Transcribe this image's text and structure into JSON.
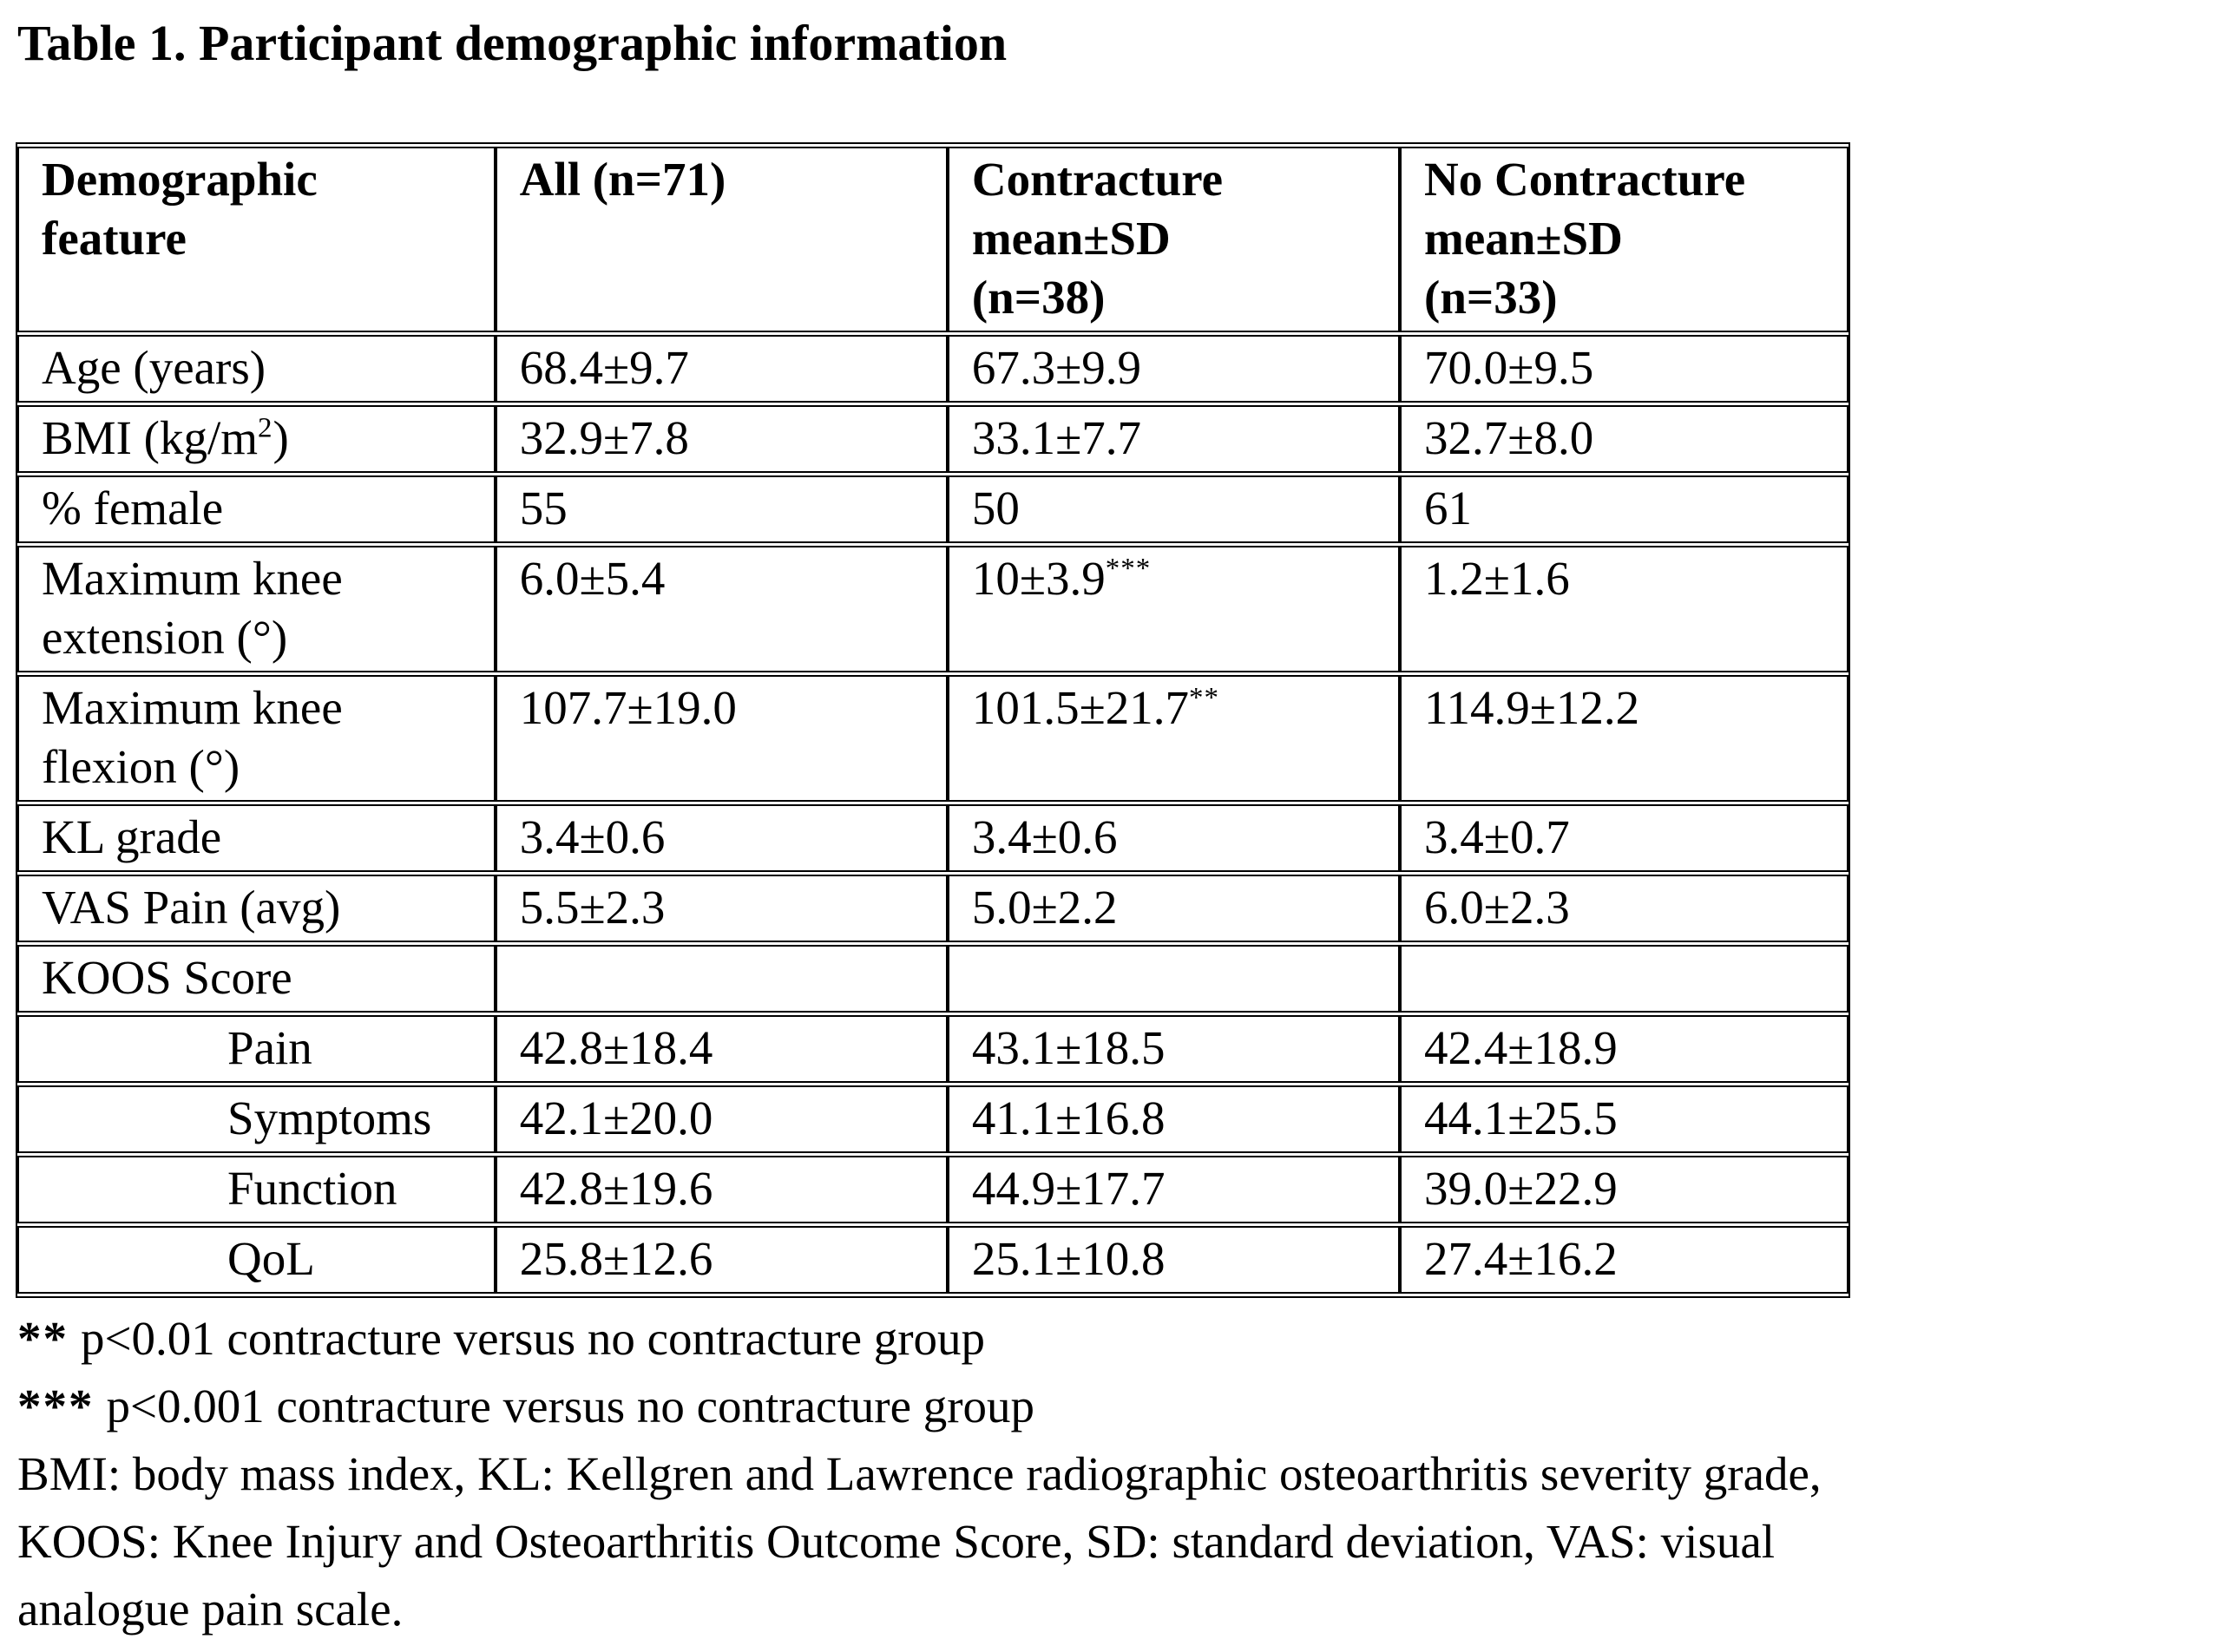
{
  "title": "Table 1. Participant demographic information",
  "table": {
    "header": {
      "feature": {
        "lines": [
          "Demographic",
          "feature"
        ]
      },
      "all": {
        "lines": [
          "All (n=71)"
        ]
      },
      "contracture": {
        "lines": [
          "Contracture",
          "mean±SD",
          "(n=38)"
        ]
      },
      "no_contracture": {
        "lines": [
          "No Contracture",
          "mean±SD",
          "(n=33)"
        ]
      }
    },
    "rows": [
      {
        "label": "Age (years)",
        "label_sup": "",
        "label_post": "",
        "all": "68.4±9.7",
        "contracture": "67.3±9.9",
        "contracture_sup": "",
        "no_contracture": "70.0±9.5"
      },
      {
        "label": "BMI (kg/m",
        "label_sup": "2",
        "label_post": ")",
        "all": "32.9±7.8",
        "contracture": "33.1±7.7",
        "contracture_sup": "",
        "no_contracture": "32.7±8.0"
      },
      {
        "label": "% female",
        "label_sup": "",
        "label_post": "",
        "all": "55",
        "contracture": "50",
        "contracture_sup": "",
        "no_contracture": "61"
      },
      {
        "label": "Maximum knee extension (°)",
        "label_sup": "",
        "label_post": "",
        "all": "6.0±5.4",
        "contracture": "10±3.9",
        "contracture_sup": "***",
        "no_contracture": "1.2±1.6"
      },
      {
        "label": "Maximum knee flexion (°)",
        "label_sup": "",
        "label_post": "",
        "all": "107.7±19.0",
        "contracture": "101.5±21.7",
        "contracture_sup": "**",
        "no_contracture": "114.9±12.2"
      },
      {
        "label": "KL grade",
        "label_sup": "",
        "label_post": "",
        "all": "3.4±0.6",
        "contracture": "3.4±0.6",
        "contracture_sup": "",
        "no_contracture": "3.4±0.7"
      },
      {
        "label": "VAS Pain (avg)",
        "label_sup": "",
        "label_post": "",
        "all": "5.5±2.3",
        "contracture": "5.0±2.2",
        "contracture_sup": "",
        "no_contracture": "6.0±2.3"
      },
      {
        "label": "KOOS Score",
        "label_sup": "",
        "label_post": "",
        "all": "",
        "contracture": "",
        "contracture_sup": "",
        "no_contracture": ""
      },
      {
        "label": "Pain",
        "label_sup": "",
        "label_post": "",
        "all": "42.8±18.4",
        "contracture": "43.1±18.5",
        "contracture_sup": "",
        "no_contracture": "42.4±18.9"
      },
      {
        "label": "Symptoms",
        "label_sup": "",
        "label_post": "",
        "all": "42.1±20.0",
        "contracture": "41.1±16.8",
        "contracture_sup": "",
        "no_contracture": "44.1±25.5"
      },
      {
        "label": "Function",
        "label_sup": "",
        "label_post": "",
        "all": "42.8±19.6",
        "contracture": "44.9±17.7",
        "contracture_sup": "",
        "no_contracture": "39.0±22.9"
      },
      {
        "label": "QoL",
        "label_sup": "",
        "label_post": "",
        "all": "25.8±12.6",
        "contracture": "25.1±10.8",
        "contracture_sup": "",
        "no_contracture": "27.4±16.2"
      }
    ]
  },
  "footnotes": {
    "significance": [
      {
        "marker": "**",
        "text": "p<0.01 contracture versus no contracture group"
      },
      {
        "marker": "***",
        "text": "p<0.001 contracture versus no contracture group"
      }
    ],
    "abbreviations_lines": [
      "BMI: body mass index, KL: Kellgren and Lawrence radiographic osteoarthritis severity grade,",
      "KOOS: Knee Injury and Osteoarthritis Outcome Score, SD: standard deviation, VAS: visual",
      "analogue pain scale."
    ]
  }
}
